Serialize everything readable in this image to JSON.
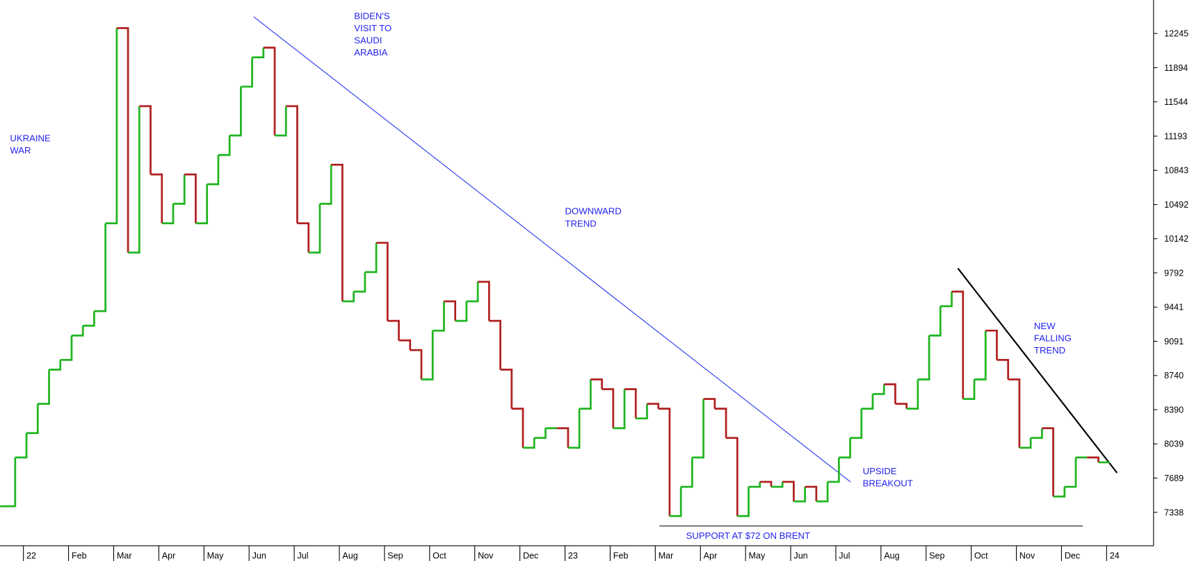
{
  "chart_data": {
    "type": "step",
    "categories": [
      null,
      null,
      "22",
      null,
      null,
      null,
      "Feb",
      null,
      null,
      null,
      "Mar",
      null,
      null,
      null,
      "Apr",
      null,
      null,
      null,
      "May",
      null,
      null,
      null,
      "Jun",
      null,
      null,
      null,
      "Jul",
      null,
      null,
      null,
      "Aug",
      null,
      null,
      null,
      "Sep",
      null,
      null,
      null,
      "Oct",
      null,
      null,
      null,
      "Nov",
      null,
      null,
      null,
      "Dec",
      null,
      null,
      null,
      "23",
      null,
      null,
      null,
      "Feb",
      null,
      null,
      null,
      "Mar",
      null,
      null,
      null,
      "Apr",
      null,
      null,
      null,
      "May",
      null,
      null,
      null,
      "Jun",
      null,
      null,
      null,
      "Jul",
      null,
      null,
      null,
      "Aug",
      null,
      null,
      null,
      "Sep",
      null,
      null,
      null,
      "Oct",
      null,
      null,
      null,
      "Nov",
      null,
      null,
      null,
      "Dec",
      null,
      null,
      null,
      "24"
    ],
    "values": [
      7400,
      7900,
      8150,
      8450,
      8800,
      8900,
      9150,
      9250,
      9400,
      10300,
      12300,
      10000,
      11500,
      10800,
      10300,
      10500,
      10800,
      10300,
      10700,
      11000,
      11200,
      11700,
      12000,
      12100,
      11200,
      11500,
      10300,
      10000,
      10500,
      10900,
      9500,
      9600,
      9800,
      10100,
      9300,
      9100,
      9000,
      8700,
      9200,
      9500,
      9300,
      9500,
      9700,
      9300,
      8800,
      8400,
      8000,
      8100,
      8200,
      8200,
      8000,
      8400,
      8700,
      8600,
      8200,
      8600,
      8300,
      8450,
      8400,
      7300,
      7600,
      7900,
      8500,
      8400,
      8100,
      7300,
      7600,
      7650,
      7600,
      7650,
      7450,
      7600,
      7450,
      7650,
      7900,
      8100,
      8400,
      8550,
      8650,
      8450,
      8400,
      8700,
      9150,
      9450,
      9600,
      8500,
      8700,
      9200,
      8900,
      8700,
      8000,
      8100,
      8200,
      7500,
      7600,
      7900,
      7900,
      7850,
      7850
    ],
    "up_color": "#1fb51f",
    "down_color": "#b02020",
    "ylim": [
      6995,
      12588
    ],
    "yticks": [
      7338,
      7689,
      8039,
      8390,
      8740,
      9091,
      9441,
      9792,
      10142,
      10492,
      10843,
      11193,
      11544,
      11894,
      12245
    ],
    "annotations": [
      {
        "lines": [
          "UKRAINE",
          "WAR"
        ]
      },
      {
        "lines": [
          "BIDEN'S",
          "VISIT TO",
          "SAUDI",
          "ARABIA"
        ]
      },
      {
        "lines": [
          "DOWNWARD",
          "TREND"
        ]
      },
      {
        "lines": [
          "UPSIDE",
          "BREAKOUT"
        ]
      },
      {
        "lines": [
          "SUPPORT AT $72 ON BRENT"
        ]
      },
      {
        "lines": [
          "NEW",
          "FALLING",
          "TREND"
        ]
      }
    ]
  }
}
